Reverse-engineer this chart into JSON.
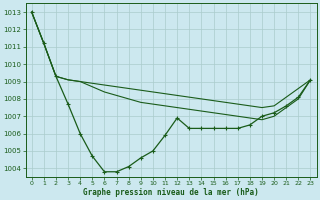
{
  "title": "Graphe pression niveau de la mer (hPa)",
  "background_color": "#cce8ef",
  "grid_color": "#aacccc",
  "line_color": "#1a5c1a",
  "xlim": [
    -0.5,
    23.5
  ],
  "ylim": [
    1003.5,
    1013.5
  ],
  "yticks": [
    1004,
    1005,
    1006,
    1007,
    1008,
    1009,
    1010,
    1011,
    1012,
    1013
  ],
  "xticks": [
    0,
    1,
    2,
    3,
    4,
    5,
    6,
    7,
    8,
    9,
    10,
    11,
    12,
    13,
    14,
    15,
    16,
    17,
    18,
    19,
    20,
    21,
    22,
    23
  ],
  "series1": [
    1013.0,
    1011.2,
    1009.3,
    1007.7,
    1006.0,
    1004.7,
    1003.8,
    1003.8,
    1004.1,
    1004.6,
    1005.0,
    1005.9,
    1006.9,
    1006.3,
    1006.3,
    1006.3,
    1006.3,
    1006.3,
    1006.5,
    1007.0,
    1007.2,
    1007.6,
    1008.1,
    1009.1
  ],
  "series2": [
    1013.0,
    1011.2,
    1009.3,
    1009.1,
    1009.0,
    1008.9,
    1008.8,
    1008.7,
    1008.6,
    1008.5,
    1008.4,
    1008.3,
    1008.2,
    1008.1,
    1008.0,
    1007.9,
    1007.8,
    1007.7,
    1007.6,
    1007.5,
    1007.6,
    1008.1,
    1008.6,
    1009.1
  ],
  "series3": [
    1013.0,
    1011.2,
    1009.3,
    1009.1,
    1009.0,
    1008.7,
    1008.4,
    1008.2,
    1008.0,
    1007.8,
    1007.7,
    1007.6,
    1007.5,
    1007.4,
    1007.3,
    1007.2,
    1007.1,
    1007.0,
    1006.9,
    1006.8,
    1007.0,
    1007.5,
    1008.0,
    1009.1
  ]
}
